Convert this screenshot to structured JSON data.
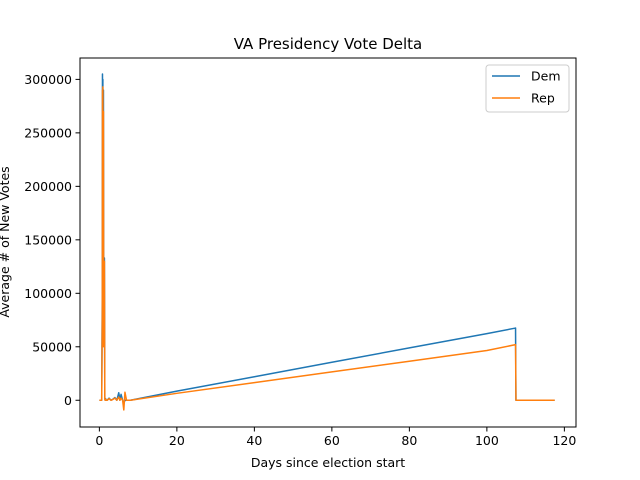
{
  "chart_data": {
    "type": "line",
    "title": "VA Presidency Vote Delta",
    "xlabel": "Days since election start",
    "ylabel": "Average # of New Votes",
    "xlim": [
      -5,
      123
    ],
    "ylim": [
      -25000,
      320000
    ],
    "xticks": [
      0,
      20,
      40,
      60,
      80,
      100,
      120
    ],
    "yticks": [
      0,
      50000,
      100000,
      150000,
      200000,
      250000,
      300000
    ],
    "legend": "top-right",
    "grid": false,
    "series": [
      {
        "name": "Dem",
        "color": "#1f77b4",
        "x": [
          0.0,
          0.6,
          0.75,
          0.8,
          0.85,
          0.9,
          0.95,
          1.0,
          1.05,
          1.1,
          1.2,
          1.3,
          1.4,
          1.5,
          1.6,
          1.8,
          2.0,
          2.5,
          3.0,
          3.5,
          4.0,
          4.5,
          5.0,
          5.3,
          5.6,
          6.0,
          6.3,
          6.6,
          7.0,
          8.0,
          20.0,
          40.0,
          60.0,
          80.0,
          100.0,
          107.4,
          107.5,
          117.5
        ],
        "y": [
          0,
          0,
          100000,
          305000,
          150000,
          300000,
          130000,
          60000,
          290000,
          120000,
          85000,
          133000,
          2000,
          0,
          1500,
          0,
          0,
          2000,
          0,
          1000,
          2500,
          0,
          7000,
          0,
          5500,
          0,
          -3000,
          0,
          0,
          0,
          8500,
          22000,
          35500,
          49000,
          62300,
          67500,
          0,
          0
        ]
      },
      {
        "name": "Rep",
        "color": "#ff7f0e",
        "x": [
          0.0,
          0.6,
          0.75,
          0.8,
          0.85,
          0.9,
          0.95,
          1.0,
          1.05,
          1.1,
          1.2,
          1.3,
          1.4,
          1.5,
          1.6,
          1.8,
          2.0,
          2.5,
          3.0,
          3.5,
          4.0,
          4.5,
          5.0,
          5.3,
          5.6,
          6.0,
          6.3,
          6.6,
          7.0,
          8.0,
          20.0,
          40.0,
          60.0,
          80.0,
          100.0,
          107.4,
          107.5,
          117.5
        ],
        "y": [
          0,
          0,
          80000,
          290000,
          140000,
          293000,
          110000,
          50000,
          270000,
          100000,
          70000,
          130000,
          1000,
          0,
          1000,
          0,
          0,
          1500,
          0,
          800,
          2000,
          0,
          3000,
          0,
          2000,
          0,
          -9000,
          7500,
          0,
          0,
          6500,
          16500,
          26500,
          36500,
          46500,
          52000,
          0,
          0
        ]
      }
    ]
  }
}
